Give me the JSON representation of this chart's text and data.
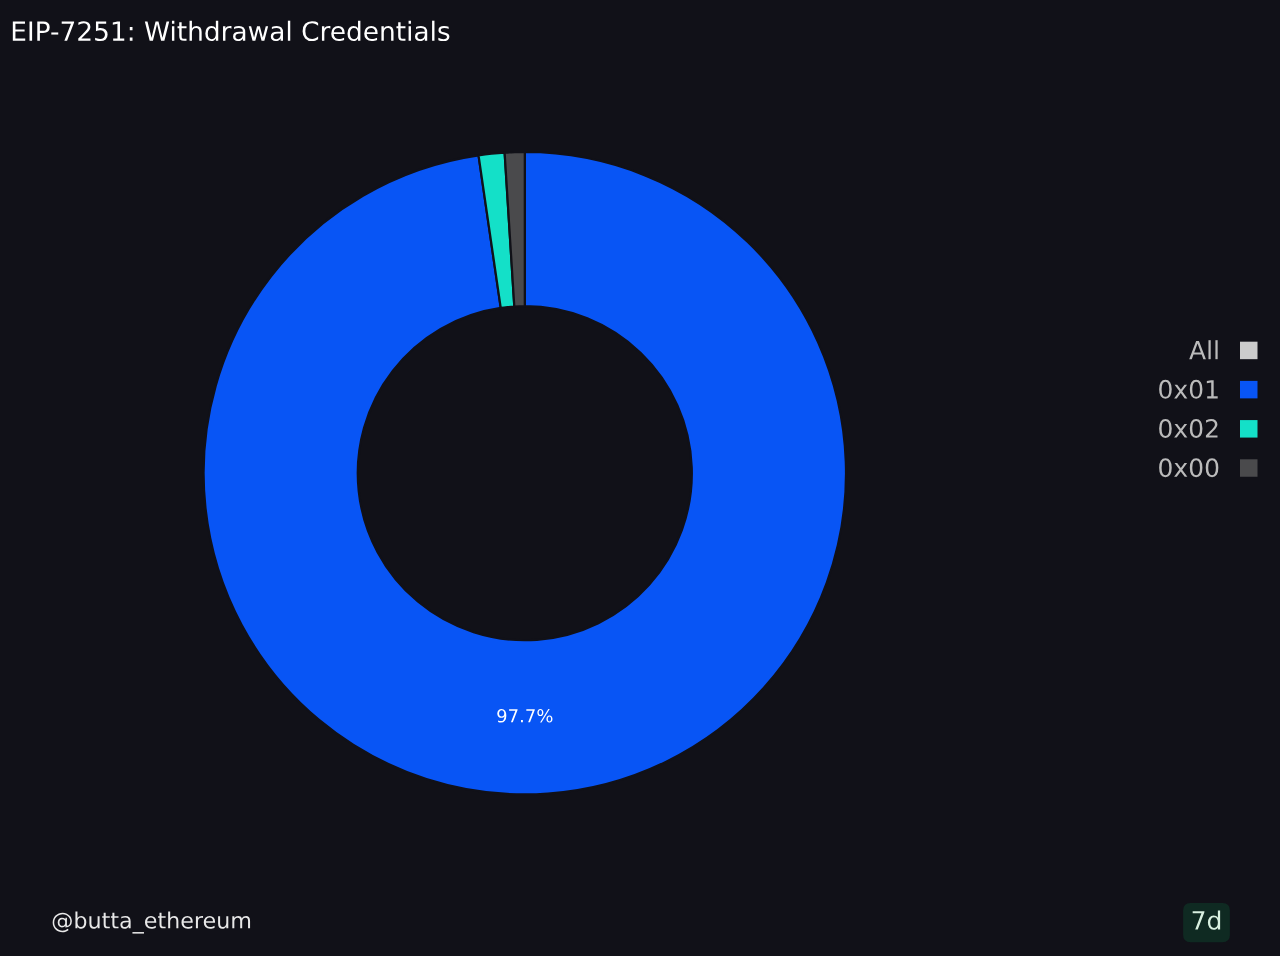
{
  "chart_data": {
    "type": "donut",
    "title": "EIP-7251: Withdrawal Credentials",
    "categories": [
      "0x01",
      "0x02",
      "0x00"
    ],
    "values": [
      97.7,
      1.3,
      1.0
    ],
    "colors": [
      "#0855f5",
      "#14e0c8",
      "#4a4a4c"
    ],
    "value_labels": [
      "97.7%",
      null,
      null
    ],
    "legend": "right",
    "legend_title": "All",
    "annotations": [
      "@butta_ethereum",
      "7d"
    ]
  }
}
